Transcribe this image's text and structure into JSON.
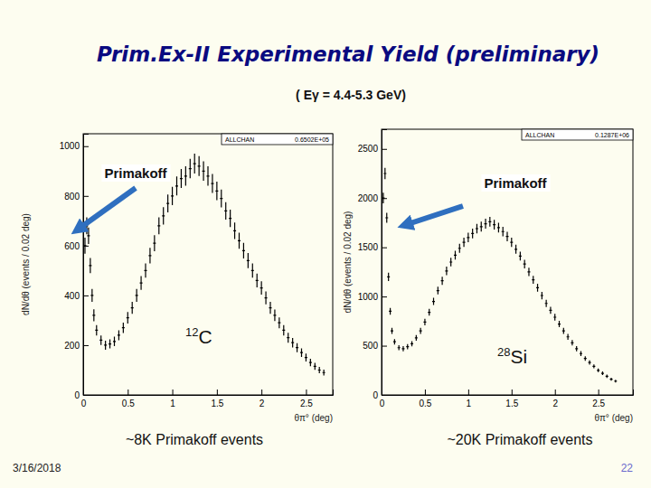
{
  "slide": {
    "title": "Prim.Ex-II Experimental Yield (preliminary)",
    "subtitle": "( Eγ = 4.4-5.3 GeV)",
    "date": "3/16/2018",
    "page": 22
  },
  "chart_data": [
    {
      "type": "scatter",
      "marker": "point",
      "color": "#000000",
      "x_label": "θπ° (deg)",
      "y_label": "dN/dθ (events / 0.02 deg)",
      "stats_box": {
        "name": "ALLCHAN",
        "value": "0.6502E+05"
      },
      "annotations": {
        "arrow_label": "Primakoff",
        "target": "12C",
        "caption": "~8K Primakoff events"
      },
      "xlim": [
        0,
        2.8
      ],
      "xticks": [
        0,
        0.5,
        1,
        1.5,
        2,
        2.5
      ],
      "ylim": [
        0,
        1050
      ],
      "yticks": [
        0,
        200,
        400,
        600,
        800,
        1000
      ],
      "x": [
        0.02,
        0.04,
        0.06,
        0.08,
        0.1,
        0.12,
        0.15,
        0.2,
        0.25,
        0.3,
        0.35,
        0.4,
        0.45,
        0.5,
        0.55,
        0.6,
        0.65,
        0.7,
        0.75,
        0.8,
        0.85,
        0.9,
        0.95,
        1,
        1.05,
        1.1,
        1.15,
        1.2,
        1.25,
        1.3,
        1.35,
        1.4,
        1.45,
        1.5,
        1.55,
        1.6,
        1.65,
        1.7,
        1.75,
        1.8,
        1.85,
        1.9,
        1.95,
        2,
        2.05,
        2.1,
        2.15,
        2.2,
        2.25,
        2.3,
        2.35,
        2.4,
        2.45,
        2.5,
        2.55,
        2.6,
        2.65,
        2.7
      ],
      "values": [
        600,
        680,
        640,
        520,
        400,
        320,
        260,
        220,
        200,
        205,
        215,
        240,
        270,
        310,
        350,
        400,
        450,
        500,
        560,
        610,
        680,
        720,
        770,
        800,
        840,
        870,
        880,
        910,
        930,
        920,
        900,
        880,
        850,
        820,
        790,
        740,
        710,
        660,
        620,
        580,
        540,
        500,
        460,
        430,
        390,
        350,
        320,
        290,
        260,
        230,
        210,
        190,
        170,
        150,
        130,
        115,
        100,
        90
      ],
      "errors": [
        32,
        34,
        33,
        30,
        26,
        24,
        21,
        19,
        18,
        18,
        19,
        20,
        21,
        23,
        24,
        26,
        28,
        29,
        31,
        32,
        34,
        35,
        36,
        37,
        38,
        38,
        39,
        39,
        40,
        40,
        39,
        39,
        38,
        37,
        36,
        35,
        35,
        33,
        32,
        31,
        30,
        29,
        28,
        27,
        26,
        24,
        23,
        22,
        21,
        20,
        19,
        18,
        17,
        16,
        15,
        14,
        13,
        12
      ]
    },
    {
      "type": "scatter",
      "marker": "point",
      "color": "#000000",
      "x_label": "θπ° (deg)",
      "y_label": "dN/dθ (events / 0.02 deg)",
      "stats_box": {
        "name": "ALLCHAN",
        "value": "0.1287E+06"
      },
      "annotations": {
        "arrow_label": "Primakoff",
        "target": "28Si",
        "caption": "~20K Primakoff events"
      },
      "xlim": [
        0,
        2.9
      ],
      "xticks": [
        0,
        0.5,
        1,
        1.5,
        2,
        2.5
      ],
      "ylim": [
        0,
        2700
      ],
      "yticks": [
        0,
        500,
        1000,
        1500,
        2000,
        2500
      ],
      "x": [
        0.02,
        0.04,
        0.06,
        0.08,
        0.1,
        0.12,
        0.15,
        0.2,
        0.25,
        0.3,
        0.35,
        0.4,
        0.45,
        0.5,
        0.55,
        0.6,
        0.65,
        0.7,
        0.75,
        0.8,
        0.85,
        0.9,
        0.95,
        1,
        1.05,
        1.1,
        1.15,
        1.2,
        1.25,
        1.3,
        1.35,
        1.4,
        1.45,
        1.5,
        1.55,
        1.6,
        1.65,
        1.7,
        1.75,
        1.8,
        1.85,
        1.9,
        1.95,
        2,
        2.05,
        2.1,
        2.15,
        2.2,
        2.25,
        2.3,
        2.35,
        2.4,
        2.45,
        2.5,
        2.55,
        2.6,
        2.65,
        2.7
      ],
      "values": [
        2000,
        2250,
        1800,
        1200,
        850,
        650,
        540,
        480,
        470,
        490,
        520,
        580,
        650,
        740,
        840,
        950,
        1060,
        1160,
        1260,
        1350,
        1420,
        1490,
        1550,
        1600,
        1640,
        1690,
        1710,
        1740,
        1760,
        1730,
        1700,
        1660,
        1610,
        1550,
        1480,
        1410,
        1330,
        1250,
        1170,
        1090,
        1010,
        930,
        860,
        790,
        720,
        650,
        590,
        530,
        470,
        420,
        370,
        330,
        290,
        250,
        220,
        190,
        160,
        140
      ],
      "errors": [
        54,
        57,
        51,
        42,
        35,
        31,
        28,
        26,
        26,
        27,
        27,
        29,
        31,
        33,
        35,
        37,
        39,
        41,
        43,
        44,
        45,
        46,
        47,
        48,
        49,
        49,
        50,
        50,
        50,
        50,
        49,
        49,
        48,
        47,
        46,
        45,
        44,
        42,
        41,
        40,
        38,
        37,
        35,
        34,
        32,
        31,
        29,
        28,
        26,
        25,
        23,
        22,
        20,
        19,
        18,
        17,
        15,
        14
      ]
    }
  ]
}
